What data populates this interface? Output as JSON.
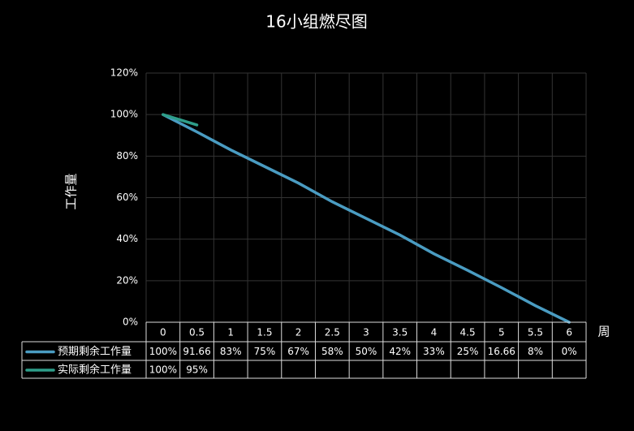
{
  "chart_data": {
    "type": "line",
    "title": "16小组燃尽图",
    "y_label": "工作量",
    "x_label": "周",
    "categories": [
      "0",
      "0.5",
      "1",
      "1.5",
      "2",
      "2.5",
      "3",
      "3.5",
      "4",
      "4.5",
      "5",
      "5.5",
      "6"
    ],
    "series": [
      {
        "name": "预期剩余工作量",
        "color": "#4a9cc2",
        "values": [
          100,
          91.66,
          83,
          75,
          67,
          58,
          50,
          42,
          33,
          25,
          16.66,
          8,
          0
        ],
        "value_labels": [
          "100%",
          "91.66",
          "83%",
          "75%",
          "67%",
          "58%",
          "50%",
          "42%",
          "33%",
          "25%",
          "16.66",
          "8%",
          "0%"
        ]
      },
      {
        "name": "实际剩余工作量",
        "color": "#2e9e8a",
        "values": [
          100,
          95,
          null,
          null,
          null,
          null,
          null,
          null,
          null,
          null,
          null,
          null,
          null
        ],
        "value_labels": [
          "100%",
          "95%",
          null,
          null,
          null,
          null,
          null,
          null,
          null,
          null,
          null,
          null,
          null
        ]
      }
    ],
    "ylim": [
      0,
      120
    ],
    "yticks": [
      {
        "value": 0,
        "label": "0%"
      },
      {
        "value": 20,
        "label": "20%"
      },
      {
        "value": 40,
        "label": "40%"
      },
      {
        "value": 60,
        "label": "60%"
      },
      {
        "value": 80,
        "label": "80%"
      },
      {
        "value": 100,
        "label": "100%"
      },
      {
        "value": 120,
        "label": "120%"
      }
    ],
    "grid": true,
    "data_table": true
  }
}
